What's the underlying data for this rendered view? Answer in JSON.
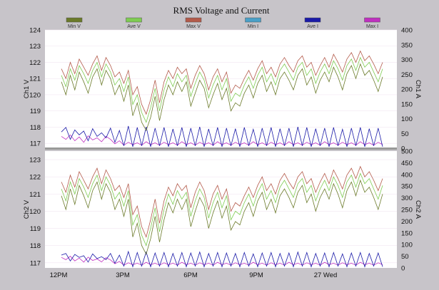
{
  "chart_data": {
    "type": "line",
    "title": "RMS Voltage and Current",
    "legend": [
      {
        "name": "Min V",
        "color": "#6b7a2a"
      },
      {
        "name": "Ave V",
        "color": "#7fcc52"
      },
      {
        "name": "Max V",
        "color": "#b35a4a"
      },
      {
        "name": "Min I",
        "color": "#4aa0c8"
      },
      {
        "name": "Ave I",
        "color": "#1a1aa8"
      },
      {
        "name": "Max I",
        "color": "#c030c0"
      }
    ],
    "x_ticks": [
      "12PM",
      "3PM",
      "6PM",
      "9PM",
      "27 Wed"
    ],
    "panels": [
      {
        "id": "ch1",
        "ylabel_left": "Ch1 V",
        "ylabel_right": "Ch1 A",
        "ylim_left": [
          116.7,
          124
        ],
        "yticks_left": [
          117,
          118,
          119,
          120,
          121,
          122,
          123,
          124
        ],
        "ylim_right": [
          0,
          400
        ],
        "yticks_right": [
          0,
          50,
          100,
          150,
          200,
          250,
          300,
          350,
          400
        ],
        "voltage_series": [
          {
            "name": "Ave V",
            "color": "#7fcc52",
            "values": [
              121.2,
              120.5,
              121.6,
              120.9,
              121.8,
              121.3,
              120.7,
              121.5,
              122.0,
              121.1,
              121.9,
              121.4,
              120.6,
              121.0,
              120.2,
              121.1,
              119.4,
              120.0,
              118.9,
              118.3,
              119.2,
              120.4,
              119.0,
              120.3,
              121.1,
              120.5,
              121.3,
              120.8,
              121.2,
              119.9,
              120.7,
              121.4,
              120.9,
              119.8,
              120.6,
              121.2,
              120.3,
              121.0,
              119.6,
              120.1,
              119.9,
              120.6,
              121.1,
              120.4,
              121.2,
              121.7,
              120.8,
              121.3,
              120.6,
              121.5,
              121.9,
              121.4,
              120.9,
              121.7,
              122.0,
              121.2,
              121.6,
              120.7,
              121.4,
              121.9,
              121.3,
              122.1,
              121.6,
              120.9,
              121.8,
              122.2,
              121.5,
              122.3,
              121.7,
              122.0,
              121.4,
              120.8,
              121.6
            ]
          },
          {
            "name": "Min V",
            "color": "#6b7a2a",
            "values": [
              120.8,
              120.0,
              121.2,
              120.3,
              121.4,
              120.8,
              120.1,
              121.1,
              121.6,
              120.6,
              121.5,
              121.0,
              120.0,
              120.6,
              119.6,
              120.6,
              118.7,
              119.5,
              118.3,
              117.8,
              118.6,
              119.9,
              118.4,
              119.7,
              120.6,
              120.0,
              120.8,
              120.2,
              120.8,
              119.3,
              120.1,
              120.9,
              120.4,
              119.2,
              120.0,
              120.7,
              119.7,
              120.4,
              119.0,
              119.5,
              119.3,
              120.1,
              120.6,
              119.8,
              120.7,
              121.2,
              120.2,
              120.8,
              120.0,
              121.0,
              121.4,
              120.9,
              120.3,
              121.2,
              121.6,
              120.6,
              121.1,
              120.1,
              120.9,
              121.4,
              120.8,
              121.7,
              121.1,
              120.3,
              121.3,
              121.8,
              121.0,
              121.9,
              121.2,
              121.5,
              120.9,
              120.2,
              121.1
            ]
          },
          {
            "name": "Max V",
            "color": "#b35a4a",
            "values": [
              121.6,
              121.0,
              122.0,
              121.3,
              122.2,
              121.7,
              121.2,
              121.9,
              122.4,
              121.5,
              122.3,
              121.8,
              121.1,
              121.4,
              120.7,
              121.5,
              120.0,
              120.5,
              119.4,
              118.8,
              119.7,
              120.9,
              119.5,
              120.8,
              121.5,
              121.0,
              121.7,
              121.3,
              121.6,
              120.4,
              121.2,
              121.8,
              121.3,
              120.3,
              121.1,
              121.6,
              120.8,
              121.4,
              120.1,
              120.6,
              120.4,
              121.0,
              121.5,
              120.9,
              121.6,
              122.1,
              121.3,
              121.7,
              121.1,
              121.9,
              122.3,
              121.8,
              121.4,
              122.1,
              122.4,
              121.7,
              122.0,
              121.2,
              121.8,
              122.3,
              121.7,
              122.5,
              122.0,
              121.4,
              122.2,
              122.6,
              122.0,
              122.7,
              122.1,
              122.4,
              121.9,
              121.3,
              122.0
            ]
          }
        ],
        "current_series": [
          {
            "name": "Ave I",
            "color": "#1a1aa8",
            "values": [
              55,
              70,
              30,
              62,
              45,
              58,
              25,
              66,
              40,
              52,
              35,
              68,
              20,
              60,
              8,
              75,
              5,
              70,
              8,
              72,
              5,
              68,
              8,
              70,
              5,
              65,
              8,
              70,
              5,
              68,
              8,
              72,
              5,
              65,
              8,
              70,
              5,
              68,
              8,
              66,
              5,
              70,
              8,
              64,
              5,
              68,
              8,
              70,
              5,
              66,
              8,
              68,
              5,
              72,
              8,
              70,
              5,
              66,
              8,
              68,
              5,
              70,
              8,
              64,
              5,
              68,
              8,
              70,
              5,
              66,
              8,
              68,
              5
            ]
          },
          {
            "name": "Max I",
            "color": "#c030c0",
            "values": [
              40,
              30,
              45,
              25,
              38,
              20,
              42,
              28,
              35,
              22,
              40,
              30,
              15,
              25,
              10,
              20,
              12,
              18,
              10,
              22,
              12,
              18,
              10,
              20,
              12,
              18,
              10,
              22,
              12,
              18,
              10,
              20,
              12,
              18,
              10,
              22,
              12,
              18,
              10,
              20,
              12,
              18,
              10,
              22,
              12,
              18,
              10,
              20,
              12,
              18,
              10,
              22,
              12,
              18,
              10,
              20,
              12,
              18,
              10,
              22,
              12,
              18,
              10,
              20,
              12,
              18,
              10,
              22,
              12,
              18,
              10,
              20,
              12
            ]
          }
        ]
      },
      {
        "id": "ch2",
        "ylabel_left": "Ch2 V",
        "ylabel_right": "Ch2 A",
        "ylim_left": [
          116.7,
          123.5
        ],
        "yticks_left": [
          117,
          118,
          119,
          120,
          121,
          122,
          123
        ],
        "ylim_right": [
          0,
          500
        ],
        "yticks_right": [
          0,
          50,
          100,
          150,
          200,
          250,
          300,
          350,
          400,
          450,
          500
        ],
        "voltage_series": [
          {
            "name": "Ave V",
            "color": "#7fcc52",
            "values": [
              121.3,
              120.6,
              121.7,
              121.0,
              121.9,
              121.4,
              120.8,
              121.6,
              122.1,
              121.2,
              122.0,
              121.5,
              120.7,
              121.1,
              120.3,
              121.2,
              119.2,
              119.8,
              118.6,
              118.0,
              119.0,
              120.2,
              118.8,
              120.1,
              121.0,
              120.4,
              121.2,
              120.7,
              121.1,
              119.7,
              120.6,
              121.3,
              120.8,
              119.6,
              120.5,
              121.1,
              120.2,
              120.9,
              119.5,
              120.0,
              119.8,
              120.5,
              121.0,
              120.3,
              121.1,
              121.6,
              120.7,
              121.2,
              120.5,
              121.4,
              121.8,
              121.3,
              120.8,
              121.6,
              121.9,
              121.1,
              121.5,
              120.6,
              121.3,
              121.8,
              121.2,
              122.0,
              121.5,
              120.8,
              121.7,
              122.1,
              121.4,
              122.2,
              121.6,
              121.9,
              121.3,
              120.7,
              121.5
            ]
          },
          {
            "name": "Min V",
            "color": "#6b7a2a",
            "values": [
              120.9,
              120.1,
              121.3,
              120.4,
              121.5,
              120.9,
              120.2,
              121.2,
              121.7,
              120.7,
              121.6,
              121.1,
              120.1,
              120.7,
              119.7,
              120.7,
              118.5,
              119.3,
              118.0,
              117.5,
              118.4,
              119.7,
              118.2,
              119.5,
              120.5,
              119.9,
              120.7,
              120.1,
              120.7,
              119.1,
              120.0,
              120.8,
              120.3,
              119.0,
              119.9,
              120.6,
              119.6,
              120.3,
              118.9,
              119.4,
              119.2,
              120.0,
              120.5,
              119.7,
              120.6,
              121.1,
              120.1,
              120.7,
              119.9,
              120.9,
              121.3,
              120.8,
              120.2,
              121.1,
              121.5,
              120.5,
              121.0,
              120.0,
              120.8,
              121.3,
              120.7,
              121.6,
              121.0,
              120.2,
              121.2,
              121.7,
              120.9,
              121.8,
              121.1,
              121.4,
              120.8,
              120.1,
              121.0
            ]
          },
          {
            "name": "Max V",
            "color": "#b35a4a",
            "values": [
              121.7,
              121.1,
              122.1,
              121.4,
              122.3,
              121.8,
              121.3,
              122.0,
              122.5,
              121.6,
              122.4,
              121.9,
              121.2,
              121.5,
              120.8,
              121.6,
              119.8,
              120.3,
              119.1,
              118.5,
              119.5,
              120.7,
              119.3,
              120.6,
              121.4,
              120.9,
              121.6,
              121.2,
              121.5,
              120.2,
              121.1,
              121.7,
              121.2,
              120.1,
              121.0,
              121.5,
              120.7,
              121.3,
              120.0,
              120.5,
              120.3,
              120.9,
              121.4,
              120.8,
              121.5,
              122.0,
              121.2,
              121.6,
              121.0,
              121.8,
              122.2,
              121.7,
              121.3,
              122.0,
              122.3,
              121.6,
              121.9,
              121.1,
              121.7,
              122.2,
              121.6,
              122.4,
              121.9,
              121.3,
              122.1,
              122.5,
              121.9,
              122.6,
              122.0,
              122.3,
              121.8,
              121.2,
              121.9
            ]
          }
        ],
        "current_series": [
          {
            "name": "Ave I",
            "color": "#1a1aa8",
            "values": [
              55,
              62,
              30,
              58,
              45,
              52,
              25,
              60,
              40,
              48,
              35,
              62,
              20,
              55,
              8,
              70,
              5,
              66,
              8,
              68,
              5,
              64,
              8,
              66,
              5,
              62,
              8,
              66,
              5,
              64,
              8,
              68,
              5,
              62,
              8,
              66,
              5,
              64,
              8,
              62,
              5,
              66,
              8,
              60,
              5,
              64,
              8,
              66,
              5,
              62,
              8,
              64,
              5,
              68,
              8,
              66,
              5,
              62,
              8,
              64,
              5,
              66,
              8,
              60,
              5,
              64,
              8,
              66,
              5,
              62,
              8,
              64,
              5
            ]
          },
          {
            "name": "Max I",
            "color": "#c030c0",
            "values": [
              45,
              35,
              50,
              30,
              42,
              25,
              46,
              32,
              38,
              26,
              44,
              34,
              18,
              28,
              12,
              22,
              14,
              20,
              12,
              24,
              14,
              20,
              12,
              22,
              14,
              20,
              12,
              24,
              14,
              20,
              12,
              22,
              14,
              20,
              12,
              24,
              14,
              20,
              12,
              22,
              14,
              20,
              12,
              24,
              14,
              20,
              12,
              22,
              14,
              20,
              12,
              24,
              14,
              20,
              12,
              22,
              14,
              20,
              12,
              24,
              14,
              20,
              12,
              22,
              14,
              20,
              12,
              24,
              14,
              20,
              12,
              22,
              14
            ]
          }
        ]
      }
    ]
  }
}
